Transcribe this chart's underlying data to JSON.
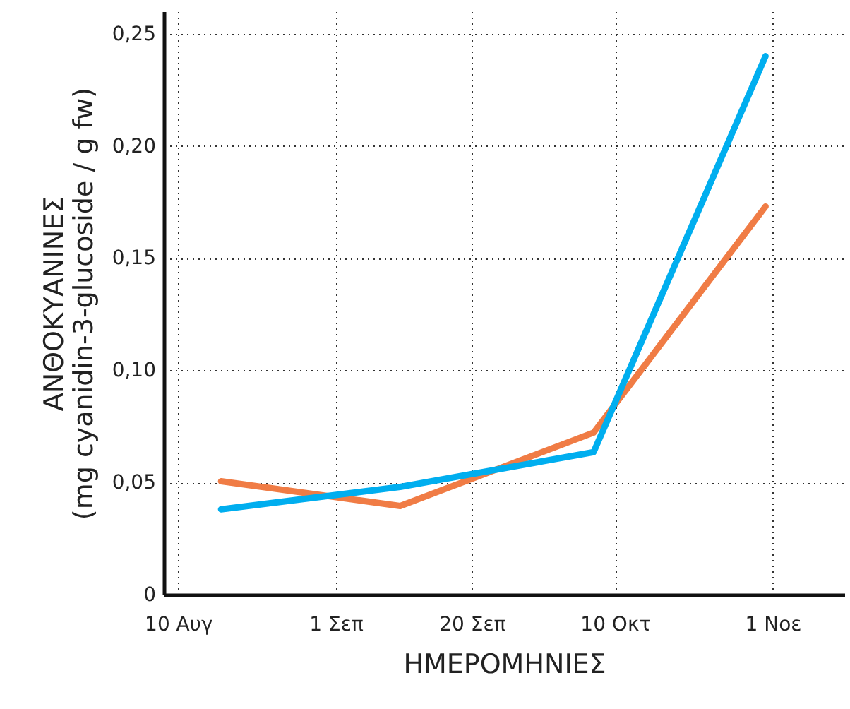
{
  "chart_data": {
    "type": "line",
    "xlabel": "ΗΜΕΡΟΜΗΝΙΕΣ",
    "ylabel": "ΑΝΘΟΚΥΑΝΙΝΕΣ\n(mg cyanidin-3-glucoside / g fw)",
    "x": [
      "--08-16",
      "--09-10",
      "--10-07",
      "--10-31"
    ],
    "series": [
      {
        "color": "#f07c45",
        "values": [
          0.0505,
          0.0395,
          0.0722,
          0.173
        ]
      },
      {
        "color": "#00aeef",
        "values": [
          0.038,
          0.048,
          0.0635,
          0.24
        ]
      }
    ],
    "xlim": [
      "--08-08",
      "--11-11"
    ],
    "xticks": [
      {
        "value": "--08-10",
        "label": "10 Αυγ"
      },
      {
        "value": "--09-01",
        "label": "1 Σεπ"
      },
      {
        "value": "--09-20",
        "label": "20 Σεπ"
      },
      {
        "value": "--10-10",
        "label": "10 Οκτ"
      },
      {
        "value": "--11-01",
        "label": "1 Νοε"
      }
    ],
    "ylim": [
      0,
      0.26
    ],
    "yticks": [
      0,
      {
        "value": 0.05,
        "label": "0,05"
      },
      {
        "value": 0.1,
        "label": "0,10"
      },
      {
        "value": 0.15,
        "label": "0,15"
      },
      {
        "value": 0.2,
        "label": "0,20"
      },
      {
        "value": 0.25,
        "label": "0,25"
      }
    ],
    "grid": true,
    "line_style": "solid",
    "marker": "none"
  }
}
